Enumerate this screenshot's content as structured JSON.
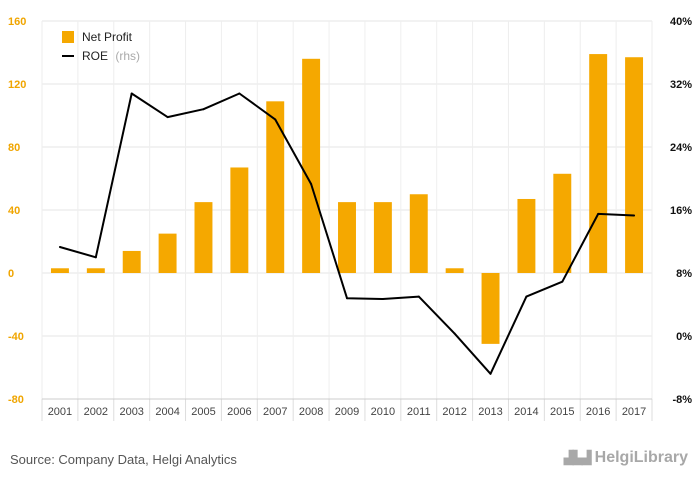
{
  "chart_data": {
    "type": "bar+line",
    "categories": [
      "2001",
      "2002",
      "2003",
      "2004",
      "2005",
      "2006",
      "2007",
      "2008",
      "2009",
      "2010",
      "2011",
      "2012",
      "2013",
      "2014",
      "2015",
      "2016",
      "2017"
    ],
    "series": [
      {
        "name": "Net Profit",
        "type": "bar",
        "axis": "left",
        "color": "#F5A800",
        "values": [
          3,
          3,
          14,
          25,
          45,
          67,
          109,
          136,
          45,
          45,
          50,
          3,
          -45,
          47,
          63,
          139,
          137
        ]
      },
      {
        "name": "ROE",
        "name_suffix": "(rhs)",
        "type": "line",
        "axis": "right",
        "color": "#000000",
        "values": [
          11.3,
          10.0,
          30.8,
          27.8,
          28.8,
          30.8,
          27.5,
          19.3,
          4.8,
          4.7,
          5.0,
          0.3,
          -4.8,
          5.0,
          6.9,
          15.5,
          15.3
        ]
      }
    ],
    "left_axis": {
      "min": -80,
      "max": 160,
      "ticks": [
        "-80",
        "-40",
        "0",
        "40",
        "80",
        "120",
        "160"
      ]
    },
    "right_axis": {
      "min": -8,
      "max": 40,
      "ticks": [
        "-8%",
        "0%",
        "8%",
        "16%",
        "24%",
        "32%",
        "40%"
      ]
    },
    "grid": true,
    "legend": "top-left"
  },
  "footer": {
    "source": "Source: Company Data, Helgi Analytics",
    "brand": "HelgiLibrary"
  }
}
